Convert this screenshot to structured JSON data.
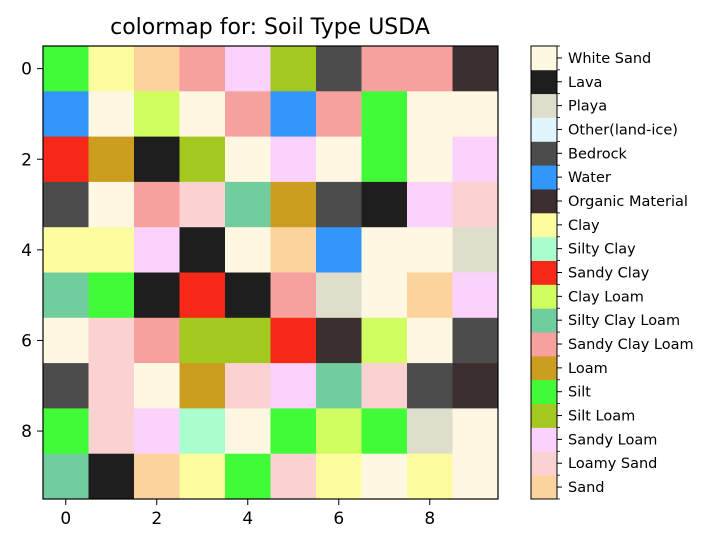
{
  "chart_data": {
    "type": "heatmap",
    "title": "colormap for: Soil Type USDA",
    "xlabel": "",
    "ylabel": "",
    "x_ticks": [
      "0",
      "2",
      "4",
      "6",
      "8"
    ],
    "y_ticks": [
      "0",
      "2",
      "4",
      "6",
      "8"
    ],
    "x_tick_values": [
      0,
      2,
      4,
      6,
      8
    ],
    "y_tick_values": [
      0,
      2,
      4,
      6,
      8
    ],
    "categories": [
      {
        "name": "Sand",
        "color": "#fdd39d"
      },
      {
        "name": "Loamy Sand",
        "color": "#fad2d2"
      },
      {
        "name": "Sandy Loam",
        "color": "#fbd2fb"
      },
      {
        "name": "Silt Loam",
        "color": "#a3c920"
      },
      {
        "name": "Silt",
        "color": "#41fb38"
      },
      {
        "name": "Loam",
        "color": "#cc9e20"
      },
      {
        "name": "Sandy Clay Loam",
        "color": "#f7a19f"
      },
      {
        "name": "Silty Clay Loam",
        "color": "#71cd9e"
      },
      {
        "name": "Clay Loam",
        "color": "#d0fe61"
      },
      {
        "name": "Sandy Clay",
        "color": "#f5281a"
      },
      {
        "name": "Silty Clay",
        "color": "#aafdcd"
      },
      {
        "name": "Clay",
        "color": "#fdfd9f"
      },
      {
        "name": "Organic Material",
        "color": "#3b2f2f"
      },
      {
        "name": "Water",
        "color": "#3296fc"
      },
      {
        "name": "Bedrock",
        "color": "#4c4c4c"
      },
      {
        "name": "Other(land-ice)",
        "color": "#e0f6fc"
      },
      {
        "name": "Playa",
        "color": "#dfdecc"
      },
      {
        "name": "Lava",
        "color": "#1e1e1e"
      },
      {
        "name": "White Sand",
        "color": "#fef7e1"
      }
    ],
    "grid": [
      [
        "Silt",
        "Clay",
        "Sand",
        "Sandy Clay Loam",
        "Sandy Loam",
        "Silt Loam",
        "Bedrock",
        "Sandy Clay Loam",
        "Sandy Clay Loam",
        "Organic Material"
      ],
      [
        "Water",
        "White Sand",
        "Clay Loam",
        "White Sand",
        "Sandy Clay Loam",
        "Water",
        "Sandy Clay Loam",
        "Silt",
        "White Sand",
        "White Sand"
      ],
      [
        "Sandy Clay",
        "Loam",
        "Lava",
        "Silt Loam",
        "White Sand",
        "Sandy Loam",
        "White Sand",
        "Silt",
        "White Sand",
        "Sandy Loam"
      ],
      [
        "Bedrock",
        "White Sand",
        "Sandy Clay Loam",
        "Loamy Sand",
        "Silty Clay Loam",
        "Loam",
        "Bedrock",
        "Lava",
        "Sandy Loam",
        "Loamy Sand"
      ],
      [
        "Clay",
        "Clay",
        "Sandy Loam",
        "Lava",
        "White Sand",
        "Sand",
        "Water",
        "White Sand",
        "White Sand",
        "Playa"
      ],
      [
        "Silty Clay Loam",
        "Silt",
        "Lava",
        "Sandy Clay",
        "Lava",
        "Sandy Clay Loam",
        "Playa",
        "White Sand",
        "Sand",
        "Sandy Loam"
      ],
      [
        "White Sand",
        "Loamy Sand",
        "Sandy Clay Loam",
        "Silt Loam",
        "Silt Loam",
        "Sandy Clay",
        "Organic Material",
        "Clay Loam",
        "White Sand",
        "Bedrock"
      ],
      [
        "Bedrock",
        "Loamy Sand",
        "White Sand",
        "Loam",
        "Loamy Sand",
        "Sandy Loam",
        "Silty Clay Loam",
        "Loamy Sand",
        "Bedrock",
        "Organic Material"
      ],
      [
        "Silt",
        "Loamy Sand",
        "Sandy Loam",
        "Silty Clay",
        "White Sand",
        "Silt",
        "Clay Loam",
        "Silt",
        "Playa",
        "White Sand"
      ],
      [
        "Silty Clay Loam",
        "Lava",
        "Sand",
        "Clay",
        "Silt",
        "Loamy Sand",
        "Clay",
        "White Sand",
        "Clay",
        "White Sand"
      ]
    ],
    "legend_placement": "right colorbar",
    "grid_lines": false
  }
}
